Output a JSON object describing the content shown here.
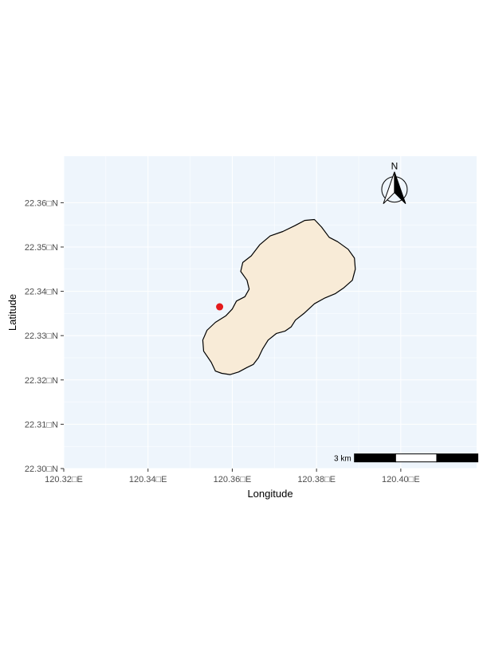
{
  "map": {
    "x_axis_title": "Longitude",
    "y_axis_title": "Latitude",
    "x_ticks": [
      {
        "value": 120.32,
        "label": "120.32□E"
      },
      {
        "value": 120.34,
        "label": "120.34□E"
      },
      {
        "value": 120.36,
        "label": "120.36□E"
      },
      {
        "value": 120.38,
        "label": "120.38□E"
      },
      {
        "value": 120.4,
        "label": "120.40□E"
      }
    ],
    "y_ticks": [
      {
        "value": 22.3,
        "label": "22.30□N"
      },
      {
        "value": 22.31,
        "label": "22.31□N"
      },
      {
        "value": 22.32,
        "label": "22.32□N"
      },
      {
        "value": 22.33,
        "label": "22.33□N"
      },
      {
        "value": 22.34,
        "label": "22.34□N"
      },
      {
        "value": 22.35,
        "label": "22.35□N"
      },
      {
        "value": 22.36,
        "label": "22.36□N"
      }
    ],
    "xlim": [
      120.32,
      120.418
    ],
    "ylim": [
      22.3,
      22.3705
    ],
    "panel_background": "#eef5fc",
    "grid_color": "#ffffff",
    "island": {
      "fill": "#f8ebd7",
      "stroke": "#000000",
      "outline_lonlat": [
        [
          120.355,
          22.324
        ],
        [
          120.356,
          22.322
        ],
        [
          120.3575,
          22.3215
        ],
        [
          120.3595,
          22.3212
        ],
        [
          120.3615,
          22.3218
        ],
        [
          120.3635,
          22.3228
        ],
        [
          120.365,
          22.3235
        ],
        [
          120.3662,
          22.325
        ],
        [
          120.3672,
          22.327
        ],
        [
          120.3685,
          22.329
        ],
        [
          120.3705,
          22.3305
        ],
        [
          120.3725,
          22.331
        ],
        [
          120.374,
          22.332
        ],
        [
          120.375,
          22.3335
        ],
        [
          120.377,
          22.335
        ],
        [
          120.3795,
          22.3372
        ],
        [
          120.382,
          22.3385
        ],
        [
          120.3845,
          22.3395
        ],
        [
          120.3865,
          22.3408
        ],
        [
          120.3885,
          22.3425
        ],
        [
          120.3892,
          22.345
        ],
        [
          120.389,
          22.3475
        ],
        [
          120.3875,
          22.3495
        ],
        [
          120.385,
          22.3512
        ],
        [
          120.383,
          22.3522
        ],
        [
          120.3812,
          22.3545
        ],
        [
          120.3795,
          22.3562
        ],
        [
          120.3772,
          22.356
        ],
        [
          120.3748,
          22.3548
        ],
        [
          120.372,
          22.3535
        ],
        [
          120.369,
          22.3525
        ],
        [
          120.3665,
          22.3505
        ],
        [
          120.3645,
          22.348
        ],
        [
          120.3625,
          22.3465
        ],
        [
          120.362,
          22.3445
        ],
        [
          120.3635,
          22.3425
        ],
        [
          120.364,
          22.3405
        ],
        [
          120.363,
          22.3388
        ],
        [
          120.361,
          22.3378
        ],
        [
          120.36,
          22.336
        ],
        [
          120.3585,
          22.3345
        ],
        [
          120.356,
          22.333
        ],
        [
          120.354,
          22.3312
        ],
        [
          120.353,
          22.329
        ],
        [
          120.3532,
          22.3265
        ]
      ]
    },
    "point": {
      "lon": 120.357,
      "lat": 22.3365,
      "color": "#e41a1c"
    },
    "north_arrow": {
      "label": "N",
      "lon": 120.3985,
      "lat": 22.363
    },
    "scale_bar": {
      "label": "3 km",
      "start_lon": 120.389,
      "end_lon": 120.4183,
      "lat": 22.3024,
      "segments": 3
    }
  }
}
